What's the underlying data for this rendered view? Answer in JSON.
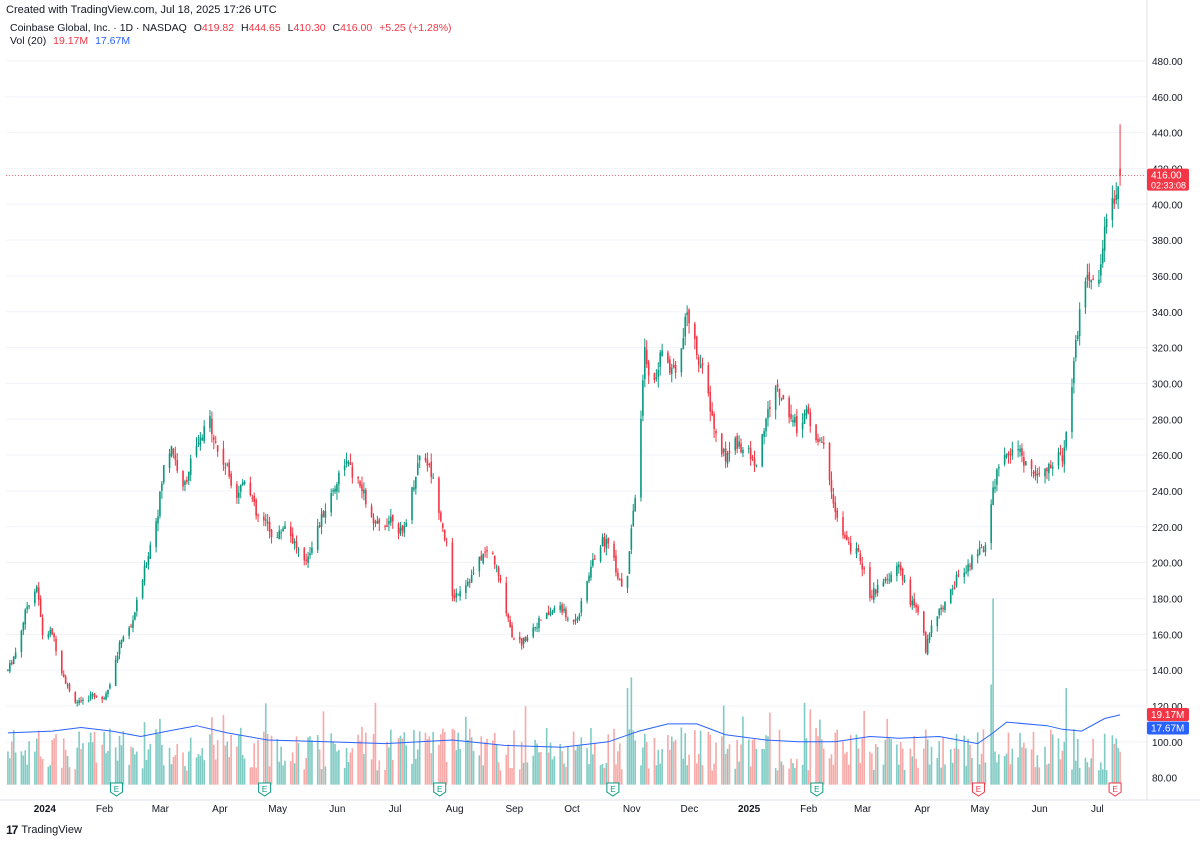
{
  "header": {
    "created_text": "Created with TradingView.com, Jul 18, 2025 17:26 UTC",
    "symbol_title": "Coinbase Global, Inc. · 1D · NASDAQ",
    "o_label": "O",
    "o_value": "419.82",
    "h_label": "H",
    "h_value": "444.65",
    "l_label": "L",
    "l_value": "410.30",
    "c_label": "C",
    "c_value": "416.00",
    "change": "+5.25 (+1.28%)",
    "vol_label": "Vol (20)",
    "vol_value": "19.17M",
    "vol_ma_value": "17.67M"
  },
  "footer": {
    "brand": "TradingView"
  },
  "colors": {
    "up": "#089981",
    "down": "#f23645",
    "vol_up": "#80cbc4",
    "vol_down": "#f7a9a7",
    "ma": "#2962ff"
  },
  "chart_data": {
    "type": "candlestick",
    "price_axis": {
      "ylim": [
        72,
        490
      ],
      "ticks": [
        "480.00",
        "460.00",
        "440.00",
        "420.00",
        "400.00",
        "380.00",
        "360.00",
        "340.00",
        "320.00",
        "300.00",
        "280.00",
        "260.00",
        "240.00",
        "220.00",
        "200.00",
        "180.00",
        "160.00",
        "140.00",
        "120.00",
        "100.00",
        "80.00"
      ]
    },
    "last_price_label": "416.00",
    "countdown_label": "02:33:08",
    "volume_labels": [
      "19.17M",
      "17.67M"
    ],
    "time_axis": [
      "2024",
      "Feb",
      "Mar",
      "Apr",
      "May",
      "Jun",
      "Jul",
      "Aug",
      "Sep",
      "Oct",
      "Nov",
      "Dec",
      "2025",
      "Feb",
      "Mar",
      "Apr",
      "May",
      "Jun",
      "Jul"
    ],
    "earnings_markers": [
      "E",
      "E",
      "E",
      "E",
      "E",
      "E",
      "E"
    ],
    "price_path": [
      [
        "2023-12-18",
        140
      ],
      [
        "2023-12-22",
        150
      ],
      [
        "2023-12-28",
        176
      ],
      [
        "2024-01-02",
        187
      ],
      [
        "2024-01-05",
        160
      ],
      [
        "2024-01-10",
        161
      ],
      [
        "2024-01-15",
        140
      ],
      [
        "2024-01-20",
        125
      ],
      [
        "2024-01-25",
        121
      ],
      [
        "2024-01-31",
        127
      ],
      [
        "2024-02-05",
        123
      ],
      [
        "2024-02-10",
        136
      ],
      [
        "2024-02-15",
        158
      ],
      [
        "2024-02-20",
        164
      ],
      [
        "2024-02-25",
        186
      ],
      [
        "2024-03-01",
        210
      ],
      [
        "2024-03-05",
        229
      ],
      [
        "2024-03-08",
        253
      ],
      [
        "2024-03-12",
        266
      ],
      [
        "2024-03-18",
        240
      ],
      [
        "2024-03-22",
        256
      ],
      [
        "2024-03-28",
        270
      ],
      [
        "2024-04-01",
        280
      ],
      [
        "2024-04-05",
        262
      ],
      [
        "2024-04-10",
        252
      ],
      [
        "2024-04-15",
        238
      ],
      [
        "2024-04-20",
        250
      ],
      [
        "2024-04-25",
        226
      ],
      [
        "2024-05-01",
        221
      ],
      [
        "2024-05-05",
        212
      ],
      [
        "2024-05-10",
        222
      ],
      [
        "2024-05-15",
        211
      ],
      [
        "2024-05-20",
        199
      ],
      [
        "2024-05-25",
        213
      ],
      [
        "2024-06-01",
        233
      ],
      [
        "2024-06-05",
        243
      ],
      [
        "2024-06-10",
        257
      ],
      [
        "2024-06-15",
        248
      ],
      [
        "2024-06-20",
        238
      ],
      [
        "2024-06-25",
        220
      ],
      [
        "2024-07-01",
        222
      ],
      [
        "2024-07-05",
        226
      ],
      [
        "2024-07-10",
        215
      ],
      [
        "2024-07-15",
        240
      ],
      [
        "2024-07-20",
        265
      ],
      [
        "2024-07-25",
        250
      ],
      [
        "2024-07-30",
        226
      ],
      [
        "2024-08-02",
        209
      ],
      [
        "2024-08-05",
        180
      ],
      [
        "2024-08-10",
        187
      ],
      [
        "2024-08-15",
        192
      ],
      [
        "2024-08-20",
        203
      ],
      [
        "2024-08-25",
        208
      ],
      [
        "2024-08-30",
        188
      ],
      [
        "2024-09-05",
        160
      ],
      [
        "2024-09-10",
        155
      ],
      [
        "2024-09-15",
        163
      ],
      [
        "2024-09-20",
        168
      ],
      [
        "2024-09-25",
        172
      ],
      [
        "2024-09-30",
        176
      ],
      [
        "2024-10-05",
        166
      ],
      [
        "2024-10-10",
        172
      ],
      [
        "2024-10-15",
        194
      ],
      [
        "2024-10-20",
        210
      ],
      [
        "2024-10-25",
        213
      ],
      [
        "2024-10-30",
        193
      ],
      [
        "2024-11-03",
        182
      ],
      [
        "2024-11-06",
        220
      ],
      [
        "2024-11-10",
        256
      ],
      [
        "2024-11-13",
        320
      ],
      [
        "2024-11-17",
        295
      ],
      [
        "2024-11-22",
        318
      ],
      [
        "2024-11-27",
        308
      ],
      [
        "2024-12-01",
        312
      ],
      [
        "2024-12-05",
        340
      ],
      [
        "2024-12-10",
        318
      ],
      [
        "2024-12-15",
        298
      ],
      [
        "2024-12-20",
        270
      ],
      [
        "2024-12-25",
        258
      ],
      [
        "2024-12-30",
        268
      ],
      [
        "2025-01-05",
        262
      ],
      [
        "2025-01-10",
        255
      ],
      [
        "2025-01-15",
        280
      ],
      [
        "2025-01-20",
        298
      ],
      [
        "2025-01-25",
        288
      ],
      [
        "2025-01-31",
        276
      ],
      [
        "2025-02-05",
        284
      ],
      [
        "2025-02-10",
        270
      ],
      [
        "2025-02-15",
        262
      ],
      [
        "2025-02-20",
        228
      ],
      [
        "2025-02-25",
        212
      ],
      [
        "2025-03-01",
        208
      ],
      [
        "2025-03-05",
        203
      ],
      [
        "2025-03-10",
        182
      ],
      [
        "2025-03-15",
        186
      ],
      [
        "2025-03-20",
        190
      ],
      [
        "2025-03-25",
        200
      ],
      [
        "2025-03-30",
        180
      ],
      [
        "2025-04-05",
        172
      ],
      [
        "2025-04-08",
        152
      ],
      [
        "2025-04-12",
        170
      ],
      [
        "2025-04-18",
        176
      ],
      [
        "2025-04-25",
        193
      ],
      [
        "2025-05-01",
        200
      ],
      [
        "2025-05-05",
        205
      ],
      [
        "2025-05-09",
        208
      ],
      [
        "2025-05-13",
        240
      ],
      [
        "2025-05-18",
        262
      ],
      [
        "2025-05-25",
        264
      ],
      [
        "2025-06-01",
        252
      ],
      [
        "2025-06-07",
        247
      ],
      [
        "2025-06-13",
        255
      ],
      [
        "2025-06-18",
        260
      ],
      [
        "2025-06-23",
        300
      ],
      [
        "2025-06-28",
        350
      ],
      [
        "2025-07-02",
        358
      ],
      [
        "2025-07-06",
        354
      ],
      [
        "2025-07-10",
        385
      ],
      [
        "2025-07-15",
        403
      ],
      [
        "2025-07-18",
        416
      ]
    ],
    "last_candle": {
      "open": 419.82,
      "high": 444.65,
      "low": 410.3,
      "close": 416.0
    },
    "volume_spikes": [
      [
        "2025-05-13",
        180
      ],
      [
        "2025-05-12",
        132
      ],
      [
        "2025-06-20",
        130
      ],
      [
        "2024-11-06",
        136
      ],
      [
        "2024-11-04",
        130
      ]
    ],
    "volume_ma_path": [
      [
        "2023-12-18",
        105
      ],
      [
        "2024-01-10",
        106
      ],
      [
        "2024-01-25",
        108
      ],
      [
        "2024-02-10",
        106
      ],
      [
        "2024-02-25",
        103
      ],
      [
        "2024-03-10",
        106
      ],
      [
        "2024-03-25",
        109
      ],
      [
        "2024-04-10",
        105
      ],
      [
        "2024-05-01",
        101
      ],
      [
        "2024-06-01",
        100
      ],
      [
        "2024-07-01",
        99
      ],
      [
        "2024-08-05",
        101
      ],
      [
        "2024-09-01",
        98
      ],
      [
        "2024-10-01",
        97
      ],
      [
        "2024-10-25",
        100
      ],
      [
        "2024-11-10",
        106
      ],
      [
        "2024-11-25",
        110
      ],
      [
        "2024-12-10",
        110
      ],
      [
        "2024-12-25",
        104
      ],
      [
        "2025-01-15",
        101
      ],
      [
        "2025-02-01",
        100
      ],
      [
        "2025-02-20",
        100
      ],
      [
        "2025-03-10",
        103
      ],
      [
        "2025-03-25",
        102
      ],
      [
        "2025-04-15",
        103
      ],
      [
        "2025-05-05",
        99
      ],
      [
        "2025-05-13",
        105
      ],
      [
        "2025-05-20",
        111
      ],
      [
        "2025-06-10",
        109
      ],
      [
        "2025-06-18",
        107
      ],
      [
        "2025-06-28",
        106
      ],
      [
        "2025-07-10",
        113
      ],
      [
        "2025-07-18",
        115
      ]
    ]
  }
}
